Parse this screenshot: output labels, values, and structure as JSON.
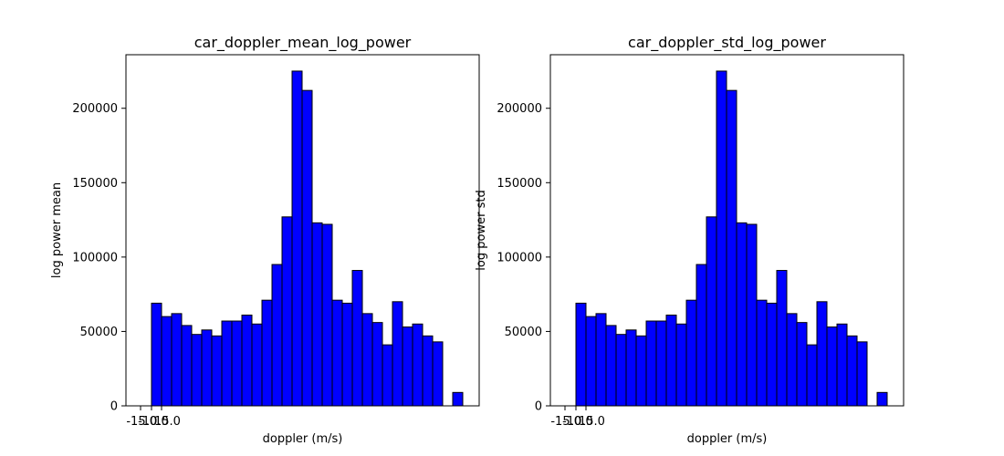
{
  "colors": {
    "bar_fill": "#0000ff",
    "bar_edge": "#000000",
    "background": "#ffffff"
  },
  "chart_data": [
    {
      "type": "bar",
      "title": "car_doppler_mean_log_power",
      "xlabel": "doppler (m/s)",
      "ylabel": "log power mean",
      "x_tick_labels": [
        "-15.0",
        "-10.0",
        "15.0"
      ],
      "y_ticks": [
        0,
        50000,
        100000,
        150000,
        200000
      ],
      "y_tick_labels": [
        "0",
        "50000",
        "100000",
        "150000",
        "200000"
      ],
      "ylim": [
        0,
        236000
      ],
      "grid": false,
      "values": [
        69000,
        60000,
        62000,
        54000,
        48000,
        51000,
        47000,
        57000,
        57000,
        61000,
        55000,
        71000,
        95000,
        127000,
        225000,
        212000,
        123000,
        122000,
        71000,
        69000,
        91000,
        62000,
        56000,
        41000,
        70000,
        53000,
        55000,
        47000,
        43000,
        0,
        9000
      ]
    },
    {
      "type": "bar",
      "title": "car_doppler_std_log_power",
      "xlabel": "doppler (m/s)",
      "ylabel": "log power std",
      "x_tick_labels": [
        "-15.0",
        "-10.0",
        "15.0"
      ],
      "y_ticks": [
        0,
        50000,
        100000,
        150000,
        200000
      ],
      "y_tick_labels": [
        "0",
        "50000",
        "100000",
        "150000",
        "200000"
      ],
      "ylim": [
        0,
        236000
      ],
      "grid": false,
      "values": [
        69000,
        60000,
        62000,
        54000,
        48000,
        51000,
        47000,
        57000,
        57000,
        61000,
        55000,
        71000,
        95000,
        127000,
        225000,
        212000,
        123000,
        122000,
        71000,
        69000,
        91000,
        62000,
        56000,
        41000,
        70000,
        53000,
        55000,
        47000,
        43000,
        0,
        9000
      ]
    }
  ]
}
